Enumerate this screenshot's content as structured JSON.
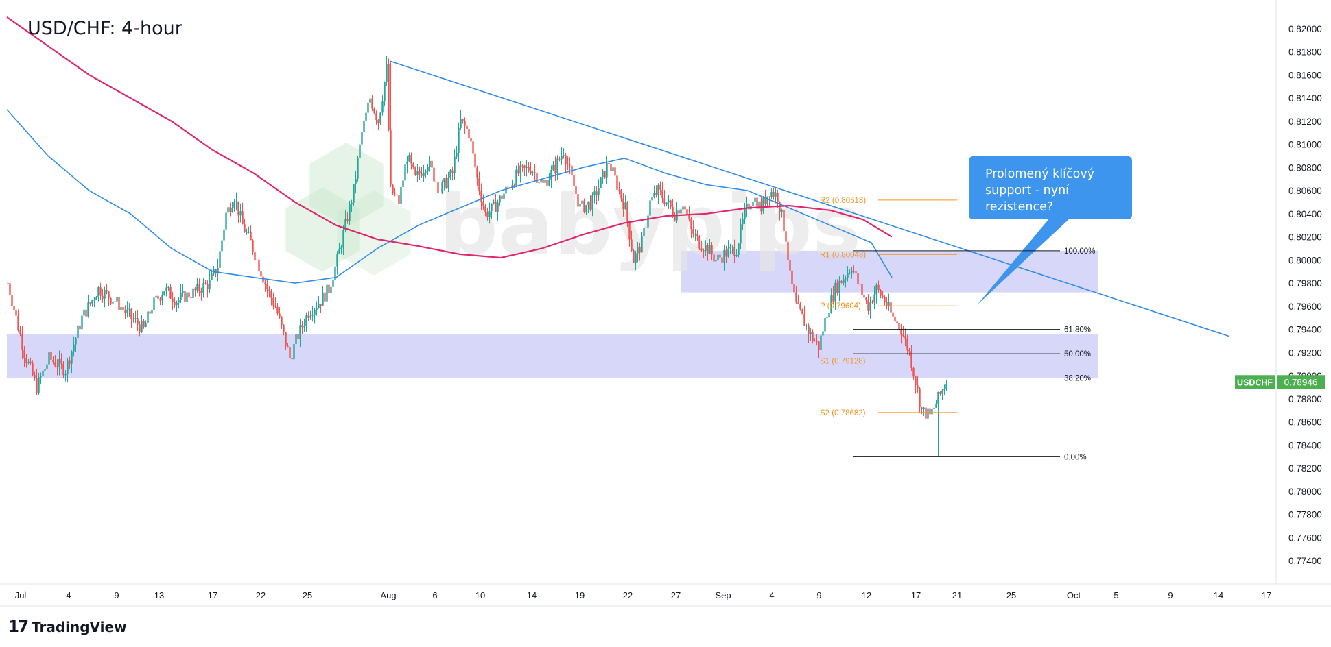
{
  "header": {
    "title": "USD/CHF: 4-hour"
  },
  "brand": {
    "logo_mark": "17",
    "logo_name": "TradingView",
    "watermark": "babypips"
  },
  "callout": {
    "lines": [
      "Prolomený klíčový",
      "support - nyní",
      "rezistence?"
    ]
  },
  "price_badge": {
    "symbol": "USDCHF",
    "value": "0.78946"
  },
  "colors": {
    "up": "#26a69a",
    "down": "#ef5350",
    "ma_fast": "#2f8ceb",
    "ma_slow": "#e0266f",
    "trendline": "#2f8ceb",
    "zone": "#c9cbf7",
    "pivot": "#f5921e",
    "callout": "#3d95ee",
    "badge": "#4caf50"
  },
  "chart_data": {
    "type": "candlestick",
    "symbol": "USDCHF",
    "timeframe": "4-hour",
    "y_axis": {
      "range": [
        0.772,
        0.822
      ],
      "ticks": [
        "0.82000",
        "0.81800",
        "0.81600",
        "0.81400",
        "0.81200",
        "0.81000",
        "0.80800",
        "0.80600",
        "0.80400",
        "0.80200",
        "0.80000",
        "0.79800",
        "0.79600",
        "0.79400",
        "0.79200",
        "0.79000",
        "0.78800",
        "0.78600",
        "0.78400",
        "0.78200",
        "0.78000",
        "0.77800",
        "0.77600",
        "0.77400"
      ]
    },
    "x_axis": {
      "ticks": [
        "Jul",
        "4",
        "9",
        "13",
        "17",
        "22",
        "25",
        "Aug",
        "6",
        "10",
        "14",
        "19",
        "22",
        "27",
        "Sep",
        "4",
        "9",
        "12",
        "17",
        "21",
        "25",
        "Oct",
        "5",
        "9",
        "14",
        "17"
      ]
    },
    "price_path": [
      [
        0,
        0.798
      ],
      [
        8,
        0.792
      ],
      [
        14,
        0.789
      ],
      [
        20,
        0.7915
      ],
      [
        28,
        0.7905
      ],
      [
        36,
        0.795
      ],
      [
        44,
        0.7975
      ],
      [
        52,
        0.7965
      ],
      [
        60,
        0.795
      ],
      [
        66,
        0.794
      ],
      [
        70,
        0.796
      ],
      [
        76,
        0.7975
      ],
      [
        82,
        0.7965
      ],
      [
        90,
        0.7972
      ],
      [
        98,
        0.798
      ],
      [
        102,
        0.7995
      ],
      [
        106,
        0.804
      ],
      [
        110,
        0.8055
      ],
      [
        114,
        0.803
      ],
      [
        118,
        0.8015
      ],
      [
        122,
        0.7995
      ],
      [
        126,
        0.7975
      ],
      [
        130,
        0.796
      ],
      [
        134,
        0.7935
      ],
      [
        137,
        0.7915
      ],
      [
        141,
        0.7935
      ],
      [
        146,
        0.7955
      ],
      [
        152,
        0.7965
      ],
      [
        156,
        0.7975
      ],
      [
        160,
        0.8
      ],
      [
        164,
        0.803
      ],
      [
        168,
        0.806
      ],
      [
        172,
        0.811
      ],
      [
        176,
        0.814
      ],
      [
        180,
        0.812
      ],
      [
        184,
        0.8165
      ],
      [
        186,
        0.806
      ],
      [
        190,
        0.805
      ],
      [
        194,
        0.809
      ],
      [
        198,
        0.807
      ],
      [
        204,
        0.8085
      ],
      [
        210,
        0.806
      ],
      [
        216,
        0.8075
      ],
      [
        220,
        0.812
      ],
      [
        224,
        0.811
      ],
      [
        228,
        0.807
      ],
      [
        232,
        0.804
      ],
      [
        236,
        0.8045
      ],
      [
        242,
        0.806
      ],
      [
        248,
        0.8075
      ],
      [
        254,
        0.808
      ],
      [
        260,
        0.8065
      ],
      [
        266,
        0.808
      ],
      [
        270,
        0.8095
      ],
      [
        274,
        0.807
      ],
      [
        278,
        0.8045
      ],
      [
        284,
        0.805
      ],
      [
        292,
        0.8085
      ],
      [
        296,
        0.8065
      ],
      [
        300,
        0.8045
      ],
      [
        304,
        0.8
      ],
      [
        308,
        0.8015
      ],
      [
        312,
        0.805
      ],
      [
        316,
        0.806
      ],
      [
        320,
        0.805
      ],
      [
        324,
        0.804
      ],
      [
        328,
        0.805
      ],
      [
        332,
        0.8025
      ],
      [
        336,
        0.8015
      ],
      [
        340,
        0.801
      ],
      [
        344,
        0.8
      ],
      [
        348,
        0.8005
      ],
      [
        354,
        0.801
      ],
      [
        358,
        0.804
      ],
      [
        362,
        0.8055
      ],
      [
        366,
        0.8045
      ],
      [
        370,
        0.806
      ],
      [
        374,
        0.8055
      ],
      [
        378,
        0.802
      ],
      [
        380,
        0.7985
      ],
      [
        383,
        0.796
      ],
      [
        386,
        0.795
      ],
      [
        390,
        0.7935
      ],
      [
        394,
        0.7925
      ],
      [
        398,
        0.7955
      ],
      [
        402,
        0.7975
      ],
      [
        406,
        0.7985
      ],
      [
        410,
        0.7995
      ],
      [
        414,
        0.7975
      ],
      [
        418,
        0.796
      ],
      [
        422,
        0.7975
      ],
      [
        426,
        0.7965
      ],
      [
        430,
        0.795
      ],
      [
        434,
        0.794
      ],
      [
        438,
        0.792
      ],
      [
        441,
        0.7895
      ],
      [
        444,
        0.787
      ],
      [
        448,
        0.7865
      ],
      [
        452,
        0.788
      ],
      [
        456,
        0.7895
      ]
    ],
    "high_low_extremes": {
      "swing_high": 0.8172,
      "swing_low": 0.7829,
      "wick_low": 0.783
    },
    "moving_averages": [
      {
        "name": "MA fast",
        "points": [
          [
            0,
            0.813
          ],
          [
            20,
            0.809
          ],
          [
            40,
            0.806
          ],
          [
            60,
            0.804
          ],
          [
            80,
            0.801
          ],
          [
            100,
            0.799
          ],
          [
            120,
            0.7985
          ],
          [
            140,
            0.798
          ],
          [
            160,
            0.7985
          ],
          [
            180,
            0.801
          ],
          [
            200,
            0.803
          ],
          [
            220,
            0.8045
          ],
          [
            240,
            0.806
          ],
          [
            260,
            0.807
          ],
          [
            280,
            0.808
          ],
          [
            300,
            0.8088
          ],
          [
            320,
            0.8075
          ],
          [
            340,
            0.8065
          ],
          [
            360,
            0.806
          ],
          [
            380,
            0.8045
          ],
          [
            400,
            0.803
          ],
          [
            420,
            0.8015
          ],
          [
            430,
            0.7985
          ]
        ]
      },
      {
        "name": "MA slow",
        "points": [
          [
            0,
            0.821
          ],
          [
            20,
            0.8185
          ],
          [
            40,
            0.816
          ],
          [
            60,
            0.814
          ],
          [
            80,
            0.812
          ],
          [
            100,
            0.8095
          ],
          [
            120,
            0.8075
          ],
          [
            140,
            0.805
          ],
          [
            160,
            0.803
          ],
          [
            180,
            0.8018
          ],
          [
            200,
            0.8012
          ],
          [
            220,
            0.8005
          ],
          [
            240,
            0.8002
          ],
          [
            260,
            0.801
          ],
          [
            280,
            0.8022
          ],
          [
            300,
            0.8032
          ],
          [
            320,
            0.8038
          ],
          [
            340,
            0.804
          ],
          [
            360,
            0.8045
          ],
          [
            380,
            0.8047
          ],
          [
            400,
            0.8043
          ],
          [
            416,
            0.8035
          ],
          [
            430,
            0.802
          ]
        ]
      }
    ],
    "trendline": {
      "from": [
        186,
        0.8172
      ],
      "to": [
        560,
        0.7934
      ]
    },
    "zones": [
      {
        "name": "upper zone",
        "from": 0.7972,
        "to": 0.8008
      },
      {
        "name": "lower zone",
        "from": 0.7898,
        "to": 0.7936
      }
    ],
    "pivots": [
      {
        "label": "R2 (0.80518)",
        "value": 0.80518
      },
      {
        "label": "R1 (0.80048)",
        "value": 0.80048
      },
      {
        "label": "P (0.79604)",
        "value": 0.79604
      },
      {
        "label": "S1 (0.79128)",
        "value": 0.79128
      },
      {
        "label": "S2 (0.78682)",
        "value": 0.78682
      }
    ],
    "fibonacci": [
      {
        "label": "100.00%",
        "value": 0.8008
      },
      {
        "label": "61.80%",
        "value": 0.794
      },
      {
        "label": "50.00%",
        "value": 0.7919
      },
      {
        "label": "38.20%",
        "value": 0.7898
      },
      {
        "label": "0.00%",
        "value": 0.783
      }
    ],
    "last_price": 0.78946
  }
}
